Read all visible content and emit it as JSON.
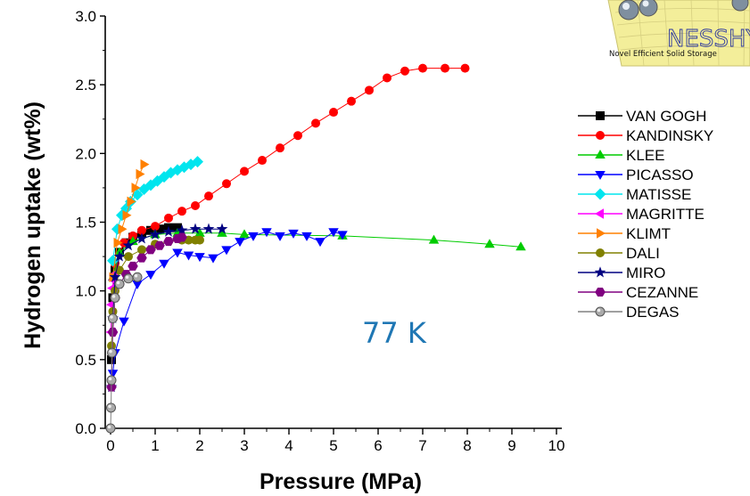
{
  "chart_data": {
    "type": "scatter",
    "title": "",
    "xlabel": "Pressure (MPa)",
    "ylabel": "Hydrogen uptake (wt%)",
    "xlim": [
      0,
      10
    ],
    "ylim": [
      0,
      3.0
    ],
    "xticks": [
      "0",
      "1",
      "2",
      "3",
      "4",
      "5",
      "6",
      "7",
      "8",
      "9",
      "10"
    ],
    "yticks": [
      "0.0",
      "0.5",
      "1.0",
      "1.5",
      "2.0",
      "2.5",
      "3.0"
    ],
    "grid": false,
    "legend_position": "right",
    "annotation": {
      "text": "77 K",
      "color": "#1f77b4"
    },
    "series": [
      {
        "name": "VAN GOGH",
        "color": "#000000",
        "marker": "square",
        "x": [
          0.02,
          0.05,
          0.1,
          0.2,
          0.35,
          0.5,
          0.7,
          0.9,
          1.1,
          1.3,
          1.5
        ],
        "y": [
          0.5,
          0.95,
          1.15,
          1.28,
          1.35,
          1.39,
          1.42,
          1.44,
          1.45,
          1.46,
          1.46
        ]
      },
      {
        "name": "KANDINSKY",
        "color": "#ff0000",
        "marker": "circle",
        "x": [
          0.1,
          0.3,
          0.5,
          0.7,
          1.0,
          1.3,
          1.6,
          1.9,
          2.2,
          2.6,
          3.0,
          3.4,
          3.8,
          4.2,
          4.6,
          5.0,
          5.4,
          5.8,
          6.2,
          6.6,
          7.0,
          7.5,
          7.95
        ],
        "y": [
          1.2,
          1.35,
          1.4,
          1.44,
          1.47,
          1.53,
          1.58,
          1.62,
          1.69,
          1.78,
          1.87,
          1.95,
          2.04,
          2.13,
          2.22,
          2.3,
          2.38,
          2.46,
          2.55,
          2.6,
          2.62,
          2.62,
          2.62
        ]
      },
      {
        "name": "KLEE",
        "color": "#00cc00",
        "marker": "triangle-up",
        "x": [
          0.05,
          0.2,
          0.5,
          1.0,
          1.5,
          2.0,
          2.5,
          3.0,
          5.2,
          7.25,
          8.5,
          9.2
        ],
        "y": [
          1.1,
          1.28,
          1.36,
          1.41,
          1.42,
          1.42,
          1.42,
          1.41,
          1.4,
          1.37,
          1.34,
          1.32
        ]
      },
      {
        "name": "PICASSO",
        "color": "#0000ff",
        "marker": "triangle-down",
        "x": [
          0.05,
          0.1,
          0.3,
          0.6,
          0.9,
          1.2,
          1.5,
          1.75,
          2.0,
          2.3,
          2.6,
          2.9,
          3.2,
          3.5,
          3.8,
          4.1,
          4.4,
          4.7,
          5.0,
          5.2
        ],
        "y": [
          0.4,
          0.55,
          0.78,
          1.05,
          1.12,
          1.2,
          1.28,
          1.26,
          1.25,
          1.24,
          1.3,
          1.36,
          1.4,
          1.43,
          1.4,
          1.42,
          1.4,
          1.36,
          1.43,
          1.41
        ]
      },
      {
        "name": "MATISSE",
        "color": "#00e5ee",
        "marker": "diamond",
        "x": [
          0.05,
          0.15,
          0.25,
          0.35,
          0.45,
          0.6,
          0.75,
          0.9,
          1.05,
          1.2,
          1.35,
          1.5,
          1.65,
          1.8,
          1.95
        ],
        "y": [
          1.22,
          1.45,
          1.55,
          1.6,
          1.65,
          1.7,
          1.74,
          1.77,
          1.8,
          1.83,
          1.86,
          1.88,
          1.9,
          1.92,
          1.94
        ]
      },
      {
        "name": "MAGRITTE",
        "color": "#ff00ff",
        "marker": "triangle-left",
        "x": [
          0.01,
          0.02,
          0.04,
          0.06,
          0.08
        ],
        "y": [
          0.7,
          0.9,
          1.02,
          1.08,
          1.12
        ]
      },
      {
        "name": "KLIMT",
        "color": "#ff8000",
        "marker": "triangle-right",
        "x": [
          0.05,
          0.15,
          0.25,
          0.35,
          0.45,
          0.55,
          0.65,
          0.75
        ],
        "y": [
          1.1,
          1.35,
          1.45,
          1.55,
          1.65,
          1.75,
          1.85,
          1.92
        ]
      },
      {
        "name": "DALI",
        "color": "#808000",
        "marker": "circle",
        "x": [
          0.02,
          0.05,
          0.1,
          0.2,
          0.4,
          0.7,
          1.0,
          1.3,
          1.6,
          1.75,
          1.9,
          2.0
        ],
        "y": [
          0.6,
          0.85,
          1.0,
          1.15,
          1.25,
          1.3,
          1.34,
          1.36,
          1.37,
          1.37,
          1.37,
          1.37
        ]
      },
      {
        "name": "MIRO",
        "color": "#000080",
        "marker": "star",
        "x": [
          0.02,
          0.05,
          0.1,
          0.2,
          0.4,
          0.7,
          1.0,
          1.3,
          1.6,
          1.9,
          2.2,
          2.5
        ],
        "y": [
          0.3,
          0.8,
          1.1,
          1.25,
          1.33,
          1.38,
          1.41,
          1.43,
          1.44,
          1.45,
          1.45,
          1.45
        ]
      },
      {
        "name": "CEZANNE",
        "color": "#800080",
        "marker": "hexagon",
        "x": [
          0.02,
          0.05,
          0.1,
          0.2,
          0.35,
          0.5,
          0.7,
          0.9,
          1.1,
          1.3,
          1.5,
          1.6
        ],
        "y": [
          0.3,
          0.7,
          0.95,
          1.05,
          1.12,
          1.18,
          1.24,
          1.3,
          1.33,
          1.36,
          1.38,
          1.39
        ]
      },
      {
        "name": "DEGAS",
        "color": "#808080",
        "marker": "sphere",
        "x": [
          0.0,
          0.01,
          0.02,
          0.03,
          0.05,
          0.1,
          0.2,
          0.4,
          0.6
        ],
        "y": [
          0.0,
          0.15,
          0.35,
          0.55,
          0.8,
          0.95,
          1.05,
          1.09,
          1.1
        ]
      }
    ]
  },
  "logo": {
    "name": "NESSHY",
    "tagline": "Novel Efficient Solid Storage"
  }
}
